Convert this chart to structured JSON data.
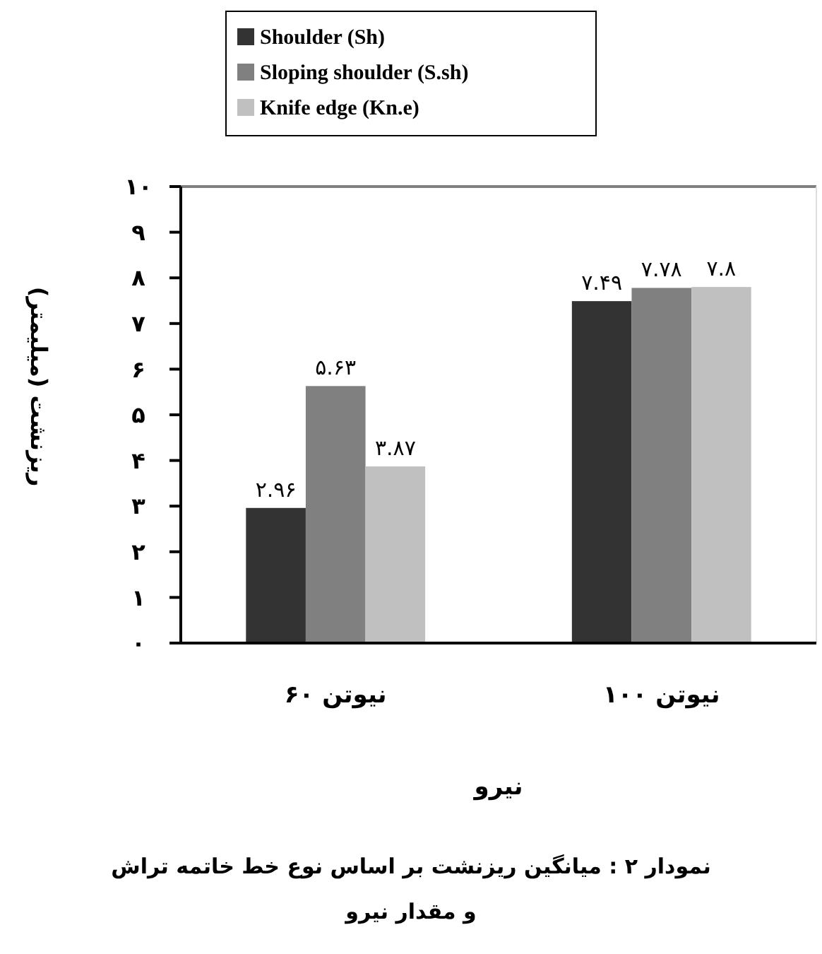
{
  "chart_data": {
    "type": "bar",
    "categories": [
      "نیوتن ۶۰",
      "نیوتن ۱۰۰"
    ],
    "series": [
      {
        "name": "Shoulder (Sh)",
        "color": "#333333",
        "values": [
          2.96,
          7.49
        ],
        "value_labels": [
          "۲.۹۶",
          "۷.۴۹"
        ]
      },
      {
        "name": "Sloping shoulder (S.sh)",
        "color": "#808080",
        "values": [
          5.63,
          7.78
        ],
        "value_labels": [
          "۵.۶۳",
          "۷.۷۸"
        ]
      },
      {
        "name": "Knife edge (Kn.e)",
        "color": "#c0c0c0",
        "values": [
          3.87,
          7.8
        ],
        "value_labels": [
          "۳.۸۷",
          "۷.۸"
        ]
      }
    ],
    "ylim": [
      0,
      10
    ],
    "yticks": [
      {
        "value": 0,
        "label": "۰"
      },
      {
        "value": 1,
        "label": "۱"
      },
      {
        "value": 2,
        "label": "۲"
      },
      {
        "value": 3,
        "label": "۳"
      },
      {
        "value": 4,
        "label": "۴"
      },
      {
        "value": 5,
        "label": "۵"
      },
      {
        "value": 6,
        "label": "۶"
      },
      {
        "value": 7,
        "label": "۷"
      },
      {
        "value": 8,
        "label": "۸"
      },
      {
        "value": 9,
        "label": "۹"
      },
      {
        "value": 10,
        "label": "۱۰"
      }
    ],
    "xlabel": "نیرو",
    "ylabel": "ریزنشت (میلیمتر)",
    "annotations": [
      "نمودار ۲ : میانگین ریزنشت بر اساس نوع خط خاتمه تراش",
      "و مقدار نیرو"
    ],
    "legend": "top",
    "grid": false
  }
}
